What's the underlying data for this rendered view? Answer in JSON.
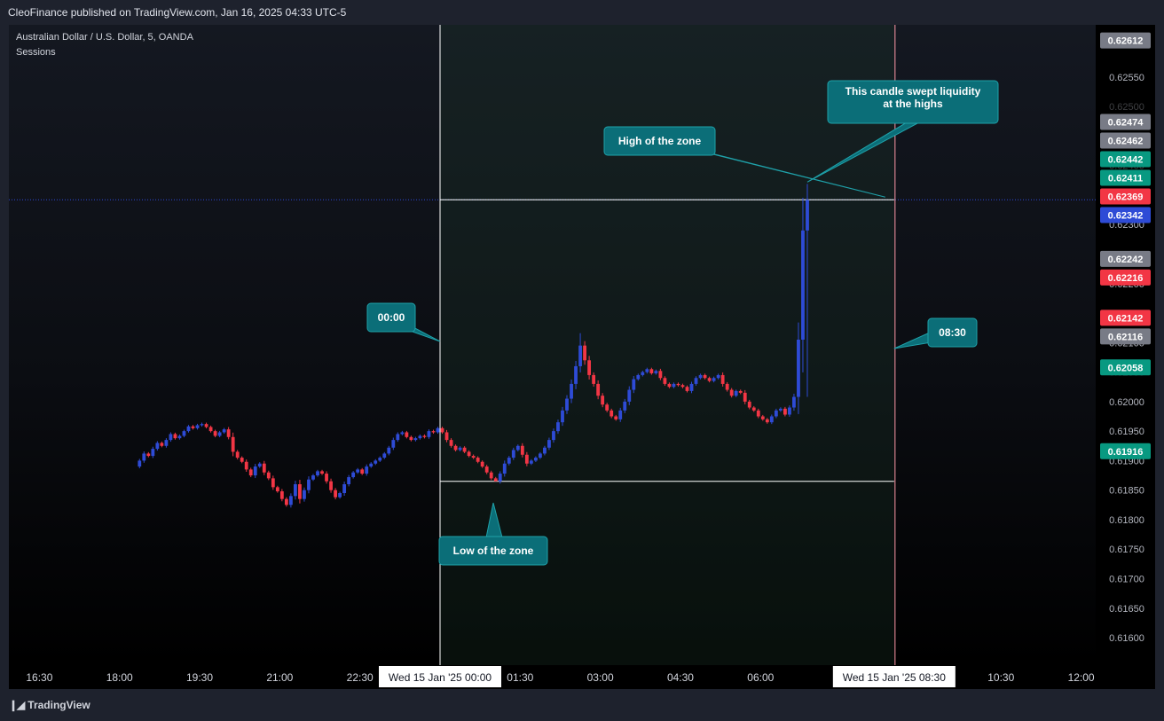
{
  "header": {
    "published_text": "CleoFinance published on TradingView.com, Jan 16, 2025 04:33 UTC-5"
  },
  "legend": {
    "symbol_line": "Australian Dollar / U.S. Dollar, 5, OANDA",
    "indicator": "Sessions"
  },
  "footer": {
    "brand": "TradingView",
    "logo_icon": "tradingview-logo-icon"
  },
  "colors": {
    "bull": "#2e4bd6",
    "bear": "#f23645",
    "annotation": "#0b6e78",
    "session_line": "#ffffff"
  },
  "chart_data": {
    "type": "candlestick",
    "ylim": [
      0.6157,
      0.6264
    ],
    "grid": false,
    "x_ticks": [
      {
        "t": -450,
        "label": "16:30"
      },
      {
        "t": -360,
        "label": "18:00"
      },
      {
        "t": -270,
        "label": "19:30"
      },
      {
        "t": -180,
        "label": "21:00"
      },
      {
        "t": -90,
        "label": "22:30"
      },
      {
        "t": 90,
        "label": "01:30"
      },
      {
        "t": 180,
        "label": "03:00"
      },
      {
        "t": 270,
        "label": "04:30"
      },
      {
        "t": 360,
        "label": "06:00"
      },
      {
        "t": 630,
        "label": "10:30"
      },
      {
        "t": 720,
        "label": "12:00"
      }
    ],
    "x_tick_partial": {
      "t": 450,
      "label": "0"
    },
    "y_ticks": [
      "0.62550",
      "0.62300",
      "0.62200",
      "0.62100",
      "0.62000",
      "0.61950",
      "0.61900",
      "0.61850",
      "0.61800",
      "0.61750",
      "0.61700",
      "0.61650",
      "0.61600"
    ],
    "y_ticks_faded": [
      "0.62500",
      "0.62400",
      "0.62350",
      "0.62250",
      "0.62150",
      "0.62050"
    ],
    "price_badges": [
      {
        "value": "0.62612",
        "color": "#787b86"
      },
      {
        "value": "0.62474",
        "color": "#787b86"
      },
      {
        "value": "0.62462",
        "color": "#787b86"
      },
      {
        "value": "0.62442",
        "color": "#089981"
      },
      {
        "value": "0.62411",
        "color": "#089981"
      },
      {
        "value": "0.62369",
        "color": "#f23645"
      },
      {
        "value": "0.62342",
        "color": "#2e4bd6"
      },
      {
        "value": "0.62242",
        "color": "#787b86"
      },
      {
        "value": "0.62216",
        "color": "#f23645"
      },
      {
        "value": "0.62142",
        "color": "#f23645"
      },
      {
        "value": "0.62116",
        "color": "#787b86"
      },
      {
        "value": "0.62058",
        "color": "#089981"
      },
      {
        "value": "0.61916",
        "color": "#089981"
      }
    ],
    "current_price": 0.62342,
    "session": {
      "start_t": 0,
      "end_t": 510,
      "high": 0.62342,
      "low": 0.61865
    },
    "date_labels": [
      {
        "t": 0,
        "label": "Wed 15 Jan '25   00:00"
      },
      {
        "t": 510,
        "label": "Wed 15 Jan '25   08:30"
      }
    ],
    "annotations": [
      {
        "text": "00:00"
      },
      {
        "text": "08:30"
      },
      {
        "text": "High of the zone"
      },
      {
        "text": "Low of the zone"
      },
      {
        "text": "This candle swept liquidity",
        "text2": "at the highs"
      }
    ],
    "candles_before_session": [
      0.619,
      0.61912,
      0.61908,
      0.6192,
      0.6193,
      0.61925,
      0.61935,
      0.61945,
      0.61938,
      0.61942,
      0.6195,
      0.61958,
      0.61955,
      0.6196,
      0.61962,
      0.61957,
      0.6195,
      0.61942,
      0.61948,
      0.61953,
      0.6194,
      0.61915,
      0.61905,
      0.61898,
      0.61885,
      0.61875,
      0.6189,
      0.61895,
      0.6188,
      0.6187,
      0.61855,
      0.61848,
      0.61835,
      0.61825,
      0.6184,
      0.6186,
      0.61835,
      0.6185,
      0.61868,
      0.61875,
      0.61882,
      0.61878,
      0.61865,
      0.6185,
      0.61838,
      0.61845,
      0.6186,
      0.61872,
      0.6188,
      0.61885,
      0.61878,
      0.6189,
      0.61895,
      0.619,
      0.61905,
      0.61912,
      0.61922,
      0.61935,
      0.61945,
      0.61948,
      0.6194,
      0.61935,
      0.61938,
      0.61942,
      0.6194,
      0.6195,
      0.61948,
      0.61955
    ],
    "candles_in_session": [
      0.61948,
      0.61935,
      0.61925,
      0.61918,
      0.61922,
      0.61915,
      0.61908,
      0.61905,
      0.61898,
      0.6189,
      0.6188,
      0.6187,
      0.61865,
      0.61878,
      0.61895,
      0.61905,
      0.61918,
      0.61925,
      0.6191,
      0.61895,
      0.619,
      0.61905,
      0.61912,
      0.61922,
      0.61935,
      0.6195,
      0.61965,
      0.61985,
      0.62005,
      0.6203,
      0.6206,
      0.62095,
      0.6207,
      0.62045,
      0.6203,
      0.6201,
      0.61995,
      0.61985,
      0.61975,
      0.6197,
      0.61985,
      0.62,
      0.6202,
      0.62038,
      0.62045,
      0.6205,
      0.62055,
      0.62048,
      0.62052,
      0.6204,
      0.6203,
      0.62025,
      0.6203,
      0.62028,
      0.62025,
      0.62018,
      0.6203,
      0.6204,
      0.62045,
      0.6204,
      0.62035,
      0.6204,
      0.62045,
      0.6203,
      0.6202,
      0.6201,
      0.62018,
      0.62015,
      0.62,
      0.6199,
      0.61985,
      0.61975,
      0.6197,
      0.61965,
      0.61975,
      0.61985,
      0.61988,
      0.61978,
      0.6199,
      0.62008,
      0.62105,
      0.6229,
      0.62342
    ]
  }
}
